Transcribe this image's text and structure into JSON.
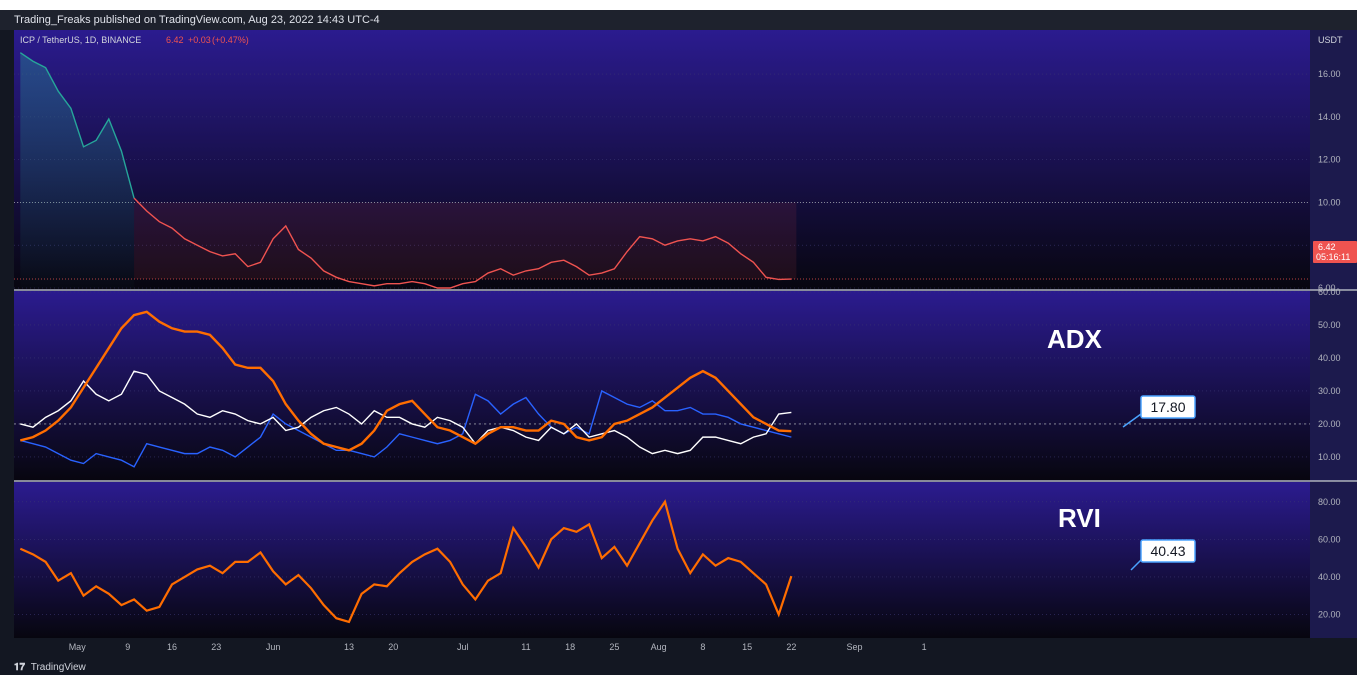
{
  "header": {
    "publisher_text": "Trading_Freaks published on TradingView.com, Aug 23, 2022 14:43 UTC-4"
  },
  "footer": {
    "brand": "TradingView",
    "logo_icon": "tradingview-logo-icon"
  },
  "colors": {
    "price_up": "#26a69a",
    "price_down": "#ef5350",
    "adx": "#ff6d00",
    "di_plus": "#ffffff",
    "di_minus": "#2962ff",
    "rvi": "#ff6d00",
    "panel_top": "#2b1b8f",
    "panel_bottom": "#07060f"
  },
  "chart_data": [
    {
      "type": "line",
      "pane": "price",
      "title": "ICP / TetherUS, 1D, BINANCE",
      "legend_values": {
        "last": "6.42",
        "change": "+0.03",
        "change_pct": "(+0.47%)"
      },
      "axis_unit": "USDT",
      "ylim": [
        6.0,
        17.5
      ],
      "yticks": [
        "16.00",
        "14.00",
        "12.00",
        "10.00",
        "8.00",
        "6.00"
      ],
      "price_label": "6.42",
      "countdown_label": "05:16:11",
      "dates": [
        "Apr 22",
        "Apr 24",
        "Apr 26",
        "Apr 28",
        "Apr 30",
        "May 2",
        "May 4",
        "May 6",
        "May 8",
        "May 10",
        "May 12",
        "May 14",
        "May 16",
        "May 18",
        "May 20",
        "May 22",
        "May 24",
        "May 26",
        "May 28",
        "May 30",
        "Jun 1",
        "Jun 3",
        "Jun 5",
        "Jun 7",
        "Jun 9",
        "Jun 11",
        "Jun 13",
        "Jun 15",
        "Jun 17",
        "Jun 19",
        "Jun 21",
        "Jun 23",
        "Jun 25",
        "Jun 27",
        "Jun 29",
        "Jul 1",
        "Jul 3",
        "Jul 5",
        "Jul 7",
        "Jul 9",
        "Jul 11",
        "Jul 13",
        "Jul 15",
        "Jul 17",
        "Jul 19",
        "Jul 21",
        "Jul 23",
        "Jul 25",
        "Jul 27",
        "Jul 29",
        "Jul 31",
        "Aug 2",
        "Aug 4",
        "Aug 6",
        "Aug 8",
        "Aug 10",
        "Aug 12",
        "Aug 14",
        "Aug 16",
        "Aug 18",
        "Aug 20",
        "Aug 22"
      ],
      "close": [
        17.0,
        16.6,
        16.3,
        15.2,
        14.4,
        12.6,
        12.9,
        13.9,
        12.4,
        10.2,
        9.6,
        9.1,
        8.8,
        8.3,
        8.0,
        7.7,
        7.5,
        7.6,
        7.0,
        7.2,
        8.3,
        8.9,
        7.8,
        7.4,
        6.8,
        6.5,
        6.3,
        6.2,
        6.1,
        6.2,
        6.2,
        6.3,
        6.2,
        6.0,
        6.0,
        6.2,
        6.3,
        6.7,
        6.9,
        6.6,
        6.8,
        6.9,
        7.2,
        7.3,
        7.0,
        6.6,
        6.7,
        6.9,
        7.7,
        8.4,
        8.3,
        8.0,
        8.2,
        8.3,
        8.2,
        8.4,
        8.1,
        7.6,
        7.2,
        6.5,
        6.4,
        6.42
      ],
      "xticks": [
        {
          "label": "May",
          "date": "May 1"
        },
        {
          "label": "9",
          "date": "May 9"
        },
        {
          "label": "16",
          "date": "May 16"
        },
        {
          "label": "23",
          "date": "May 23"
        },
        {
          "label": "Jun",
          "date": "Jun 1"
        },
        {
          "label": "13",
          "date": "Jun 13"
        },
        {
          "label": "20",
          "date": "Jun 20"
        },
        {
          "label": "Jul",
          "date": "Jul 1"
        },
        {
          "label": "11",
          "date": "Jul 11"
        },
        {
          "label": "18",
          "date": "Jul 18"
        },
        {
          "label": "25",
          "date": "Jul 25"
        },
        {
          "label": "Aug",
          "date": "Aug 1"
        },
        {
          "label": "8",
          "date": "Aug 8"
        },
        {
          "label": "15",
          "date": "Aug 15"
        },
        {
          "label": "22",
          "date": "Aug 22"
        },
        {
          "label": "Sep",
          "date": "Sep 1"
        },
        {
          "label": "1",
          "date": "Sep 12"
        }
      ]
    },
    {
      "type": "line",
      "pane": "adx",
      "title": "ADX",
      "ylim": [
        3,
        60
      ],
      "yticks": [
        "60.00",
        "50.00",
        "40.00",
        "30.00",
        "20.00",
        "10.00"
      ],
      "value_label": "17.80",
      "series": [
        {
          "key": "adx",
          "values": [
            15,
            16,
            18,
            21,
            25,
            31,
            37,
            43,
            49,
            53,
            54,
            51,
            49,
            48,
            48,
            47,
            43,
            38,
            37,
            37,
            33,
            26,
            21,
            17,
            14,
            13,
            12,
            14,
            18,
            24,
            26,
            27,
            23,
            19,
            18,
            16,
            14,
            17,
            19,
            19,
            18,
            18,
            21,
            20,
            16,
            15,
            16,
            20,
            21,
            23,
            25,
            28,
            31,
            34,
            36,
            34,
            30,
            26,
            22,
            20,
            18,
            17.8
          ]
        },
        {
          "key": "di_plus",
          "values": [
            20,
            19,
            22,
            24,
            27,
            33,
            29,
            27,
            29,
            36,
            35,
            30,
            28,
            26,
            23,
            22,
            24,
            23,
            21,
            20,
            22,
            18,
            19,
            22,
            24,
            25,
            23,
            20,
            24,
            22,
            22,
            20,
            19,
            22,
            21,
            19,
            14,
            18,
            19,
            18,
            16,
            15,
            19,
            17,
            20,
            16,
            17,
            18,
            16,
            13,
            11,
            12,
            11,
            12,
            16,
            16,
            15,
            14,
            16,
            17,
            23,
            23.5
          ]
        },
        {
          "key": "di_minus",
          "values": [
            15,
            14,
            13,
            11,
            9,
            8,
            11,
            10,
            9,
            7,
            14,
            13,
            12,
            11,
            11,
            13,
            12,
            10,
            13,
            16,
            23,
            20,
            18,
            16,
            14,
            12,
            12,
            11,
            10,
            13,
            17,
            16,
            15,
            14,
            15,
            17,
            29,
            27,
            23,
            26,
            28,
            23,
            19,
            17,
            19,
            17,
            30,
            28,
            26,
            25,
            27,
            24,
            24,
            25,
            23,
            23,
            22,
            20,
            19,
            18,
            17,
            16
          ]
        }
      ]
    },
    {
      "type": "line",
      "pane": "rvi",
      "title": "RVI",
      "ylim": [
        8,
        90
      ],
      "yticks": [
        "80.00",
        "60.00",
        "40.00",
        "20.00"
      ],
      "value_label": "40.43",
      "values": [
        55,
        52,
        48,
        38,
        42,
        30,
        35,
        31,
        25,
        28,
        22,
        24,
        36,
        40,
        44,
        46,
        42,
        48,
        48,
        53,
        43,
        36,
        41,
        34,
        25,
        18,
        16,
        31,
        36,
        35,
        42,
        48,
        52,
        55,
        48,
        36,
        28,
        38,
        42,
        66,
        56,
        45,
        60,
        66,
        64,
        68,
        50,
        56,
        46,
        58,
        70,
        80,
        55,
        42,
        52,
        46,
        50,
        48,
        42,
        36,
        20,
        40.43
      ]
    }
  ]
}
